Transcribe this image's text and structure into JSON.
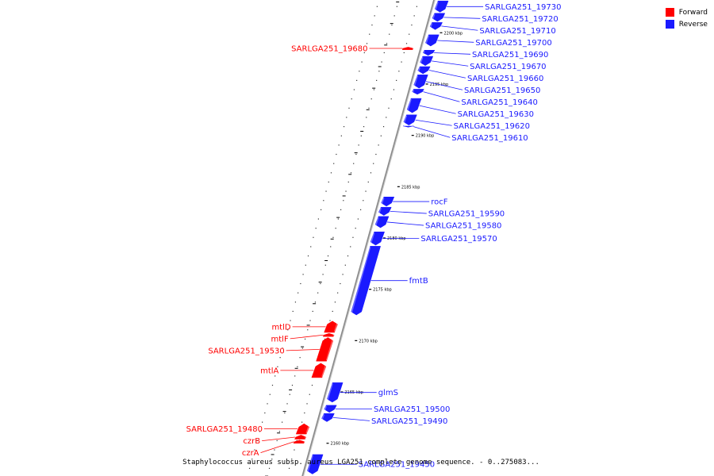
{
  "colors": {
    "forward": "#ff0000",
    "reverse": "#1a1aff",
    "backbone": "#8a8a8a"
  },
  "legend": [
    {
      "label": "Forward",
      "color": "#ff0000"
    },
    {
      "label": "Reverse",
      "color": "#1a1aff"
    }
  ],
  "caption": "Staphylococcus aureus subsp. aureus LGA251 complete genome sequence. - 0..275083...",
  "ticks": [
    {
      "kbp": 2200,
      "label": "2200 kbp"
    },
    {
      "kbp": 2195,
      "label": "2195 kbp"
    },
    {
      "kbp": 2190,
      "label": "2190 kbp"
    },
    {
      "kbp": 2185,
      "label": "2185 kbp"
    },
    {
      "kbp": 2180,
      "label": "2180 kbp"
    },
    {
      "kbp": 2175,
      "label": "2175 kbp"
    },
    {
      "kbp": 2170,
      "label": "2170 kbp"
    },
    {
      "kbp": 2165,
      "label": "2165 kbp"
    },
    {
      "kbp": 2160,
      "label": "2160 kbp"
    }
  ],
  "features": [
    {
      "name": "SARLGA251_19730",
      "strand": "reverse",
      "start_kbp": 2203.1,
      "end_kbp": 2202.0
    },
    {
      "name": "SARLGA251_19720",
      "strand": "reverse",
      "start_kbp": 2201.9,
      "end_kbp": 2201.1
    },
    {
      "name": "SARLGA251_19710",
      "strand": "reverse",
      "start_kbp": 2201.0,
      "end_kbp": 2200.3
    },
    {
      "name": "SARLGA251_19700",
      "strand": "reverse",
      "start_kbp": 2199.8,
      "end_kbp": 2198.7
    },
    {
      "name": "SARLGA251_19680",
      "strand": "forward",
      "start_kbp": 2198.6,
      "end_kbp": 2198.35
    },
    {
      "name": "SARLGA251_19690",
      "strand": "reverse",
      "start_kbp": 2198.3,
      "end_kbp": 2197.8
    },
    {
      "name": "SARLGA251_19670",
      "strand": "reverse",
      "start_kbp": 2197.7,
      "end_kbp": 2196.8
    },
    {
      "name": "SARLGA251_19660",
      "strand": "reverse",
      "start_kbp": 2196.7,
      "end_kbp": 2196.0
    },
    {
      "name": "SARLGA251_19650",
      "strand": "reverse",
      "start_kbp": 2195.9,
      "end_kbp": 2194.6
    },
    {
      "name": "SARLGA251_19640",
      "strand": "reverse",
      "start_kbp": 2194.5,
      "end_kbp": 2194.0
    },
    {
      "name": "SARLGA251_19630",
      "strand": "reverse",
      "start_kbp": 2193.6,
      "end_kbp": 2192.2
    },
    {
      "name": "SARLGA251_19620",
      "strand": "reverse",
      "start_kbp": 2192.0,
      "end_kbp": 2191.0
    },
    {
      "name": "SARLGA251_19610",
      "strand": "reverse",
      "start_kbp": 2190.9,
      "end_kbp": 2190.8
    },
    {
      "name": "rocF",
      "strand": "reverse",
      "start_kbp": 2184.0,
      "end_kbp": 2183.1
    },
    {
      "name": "SARLGA251_19590",
      "strand": "reverse",
      "start_kbp": 2183.0,
      "end_kbp": 2182.2
    },
    {
      "name": "SARLGA251_19580",
      "strand": "reverse",
      "start_kbp": 2182.1,
      "end_kbp": 2181.0
    },
    {
      "name": "SARLGA251_19570",
      "strand": "reverse",
      "start_kbp": 2180.6,
      "end_kbp": 2179.3
    },
    {
      "name": "fmtB",
      "strand": "reverse",
      "start_kbp": 2179.2,
      "end_kbp": 2172.5
    },
    {
      "name": "mtlD",
      "strand": "forward",
      "start_kbp": 2171.9,
      "end_kbp": 2170.8
    },
    {
      "name": "mtlF",
      "strand": "forward",
      "start_kbp": 2170.7,
      "end_kbp": 2170.4
    },
    {
      "name": "SARLGA251_19530",
      "strand": "forward",
      "start_kbp": 2170.3,
      "end_kbp": 2168.0
    },
    {
      "name": "mtlA",
      "strand": "forward",
      "start_kbp": 2167.8,
      "end_kbp": 2166.4
    },
    {
      "name": "glmS",
      "strand": "reverse",
      "start_kbp": 2165.9,
      "end_kbp": 2164.0
    },
    {
      "name": "SARLGA251_19500",
      "strand": "reverse",
      "start_kbp": 2163.7,
      "end_kbp": 2163.0
    },
    {
      "name": "SARLGA251_19490",
      "strand": "reverse",
      "start_kbp": 2162.9,
      "end_kbp": 2162.1
    },
    {
      "name": "SARLGA251_19480",
      "strand": "forward",
      "start_kbp": 2161.9,
      "end_kbp": 2160.9
    },
    {
      "name": "czrB",
      "strand": "forward",
      "start_kbp": 2160.8,
      "end_kbp": 2160.4
    },
    {
      "name": "czrA",
      "strand": "forward",
      "start_kbp": 2160.3,
      "end_kbp": 2160.0
    },
    {
      "name": "SARLGA251_19450",
      "strand": "reverse",
      "start_kbp": 2158.9,
      "end_kbp": 2157.0
    }
  ]
}
